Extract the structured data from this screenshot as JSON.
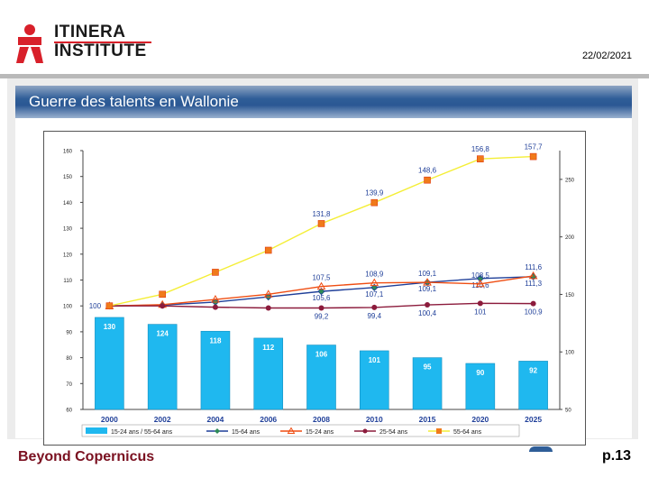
{
  "header": {
    "logo_line1": "ITINERA",
    "logo_line2": "INSTITUTE",
    "date": "22/02/2021"
  },
  "slide": {
    "title": "Guerre des talents en Wallonie"
  },
  "footer": {
    "left": "Beyond Copernicus",
    "page": "p.13"
  },
  "colors": {
    "bar": "#1fb8ef",
    "series_15_64": "#1f3f99",
    "series_15_24": "#ef4d12",
    "series_25_54": "#8c1b3c",
    "series_55_64": "#f4ee36",
    "marker_55_64": "#f07a1a"
  },
  "chart_data": {
    "type": "bar+line",
    "categories": [
      "2000",
      "2002",
      "2004",
      "2006",
      "2008",
      "2010",
      "2015",
      "2020",
      "2025"
    ],
    "left_axis": {
      "ylim": [
        60,
        160
      ],
      "ticks": [
        "60",
        "70",
        "80",
        "90",
        "100",
        "110",
        "120",
        "130",
        "140",
        "150",
        "160"
      ]
    },
    "right_axis": {
      "ylim": [
        50,
        275
      ],
      "ticks": [
        "50",
        "100",
        "150",
        "200",
        "250"
      ]
    },
    "bars": {
      "name": "15-24 ans / 55-64 ans",
      "axis": "right",
      "values": [
        130,
        124,
        118,
        112,
        106,
        101,
        95,
        90,
        92
      ],
      "labels": [
        "130",
        "124",
        "118",
        "112",
        "106",
        "101",
        "95",
        "90",
        "92"
      ]
    },
    "series": [
      {
        "name": "15-64 ans",
        "axis": "left",
        "values": [
          100,
          100.3,
          101.5,
          103.5,
          105.6,
          107.1,
          109.1,
          110.6,
          111.3
        ],
        "labels": [
          "",
          "",
          "",
          "",
          "105,6",
          "107,1",
          "109,1",
          "110,6",
          "111,3"
        ]
      },
      {
        "name": "15-24 ans",
        "axis": "left",
        "values": [
          100,
          100.5,
          102.5,
          104.5,
          107.5,
          108.9,
          109.1,
          108.5,
          111.6
        ],
        "labels": [
          "",
          "",
          "",
          "",
          "107,5",
          "108,9",
          "109,1",
          "108,5",
          "111,6"
        ]
      },
      {
        "name": "25-54 ans",
        "axis": "left",
        "values": [
          100,
          100,
          99.5,
          99.2,
          99.2,
          99.4,
          100.4,
          101,
          100.9
        ],
        "labels": [
          "100",
          "",
          "",
          "",
          "99,2",
          "99,4",
          "100,4",
          "101",
          "100,9"
        ]
      },
      {
        "name": "55-64 ans",
        "axis": "left",
        "values": [
          100,
          104.5,
          113,
          121.5,
          131.8,
          139.9,
          148.6,
          156.8,
          157.7
        ],
        "labels": [
          "",
          "",
          "",
          "",
          "131,8",
          "139,9",
          "148,6",
          "156,8",
          "157,7"
        ]
      }
    ],
    "legend": [
      "15-24 ans / 55-64 ans",
      "15-64 ans",
      "15-24 ans",
      "25-54 ans",
      "55-64 ans"
    ],
    "legend_position": "bottom",
    "grid": false
  }
}
